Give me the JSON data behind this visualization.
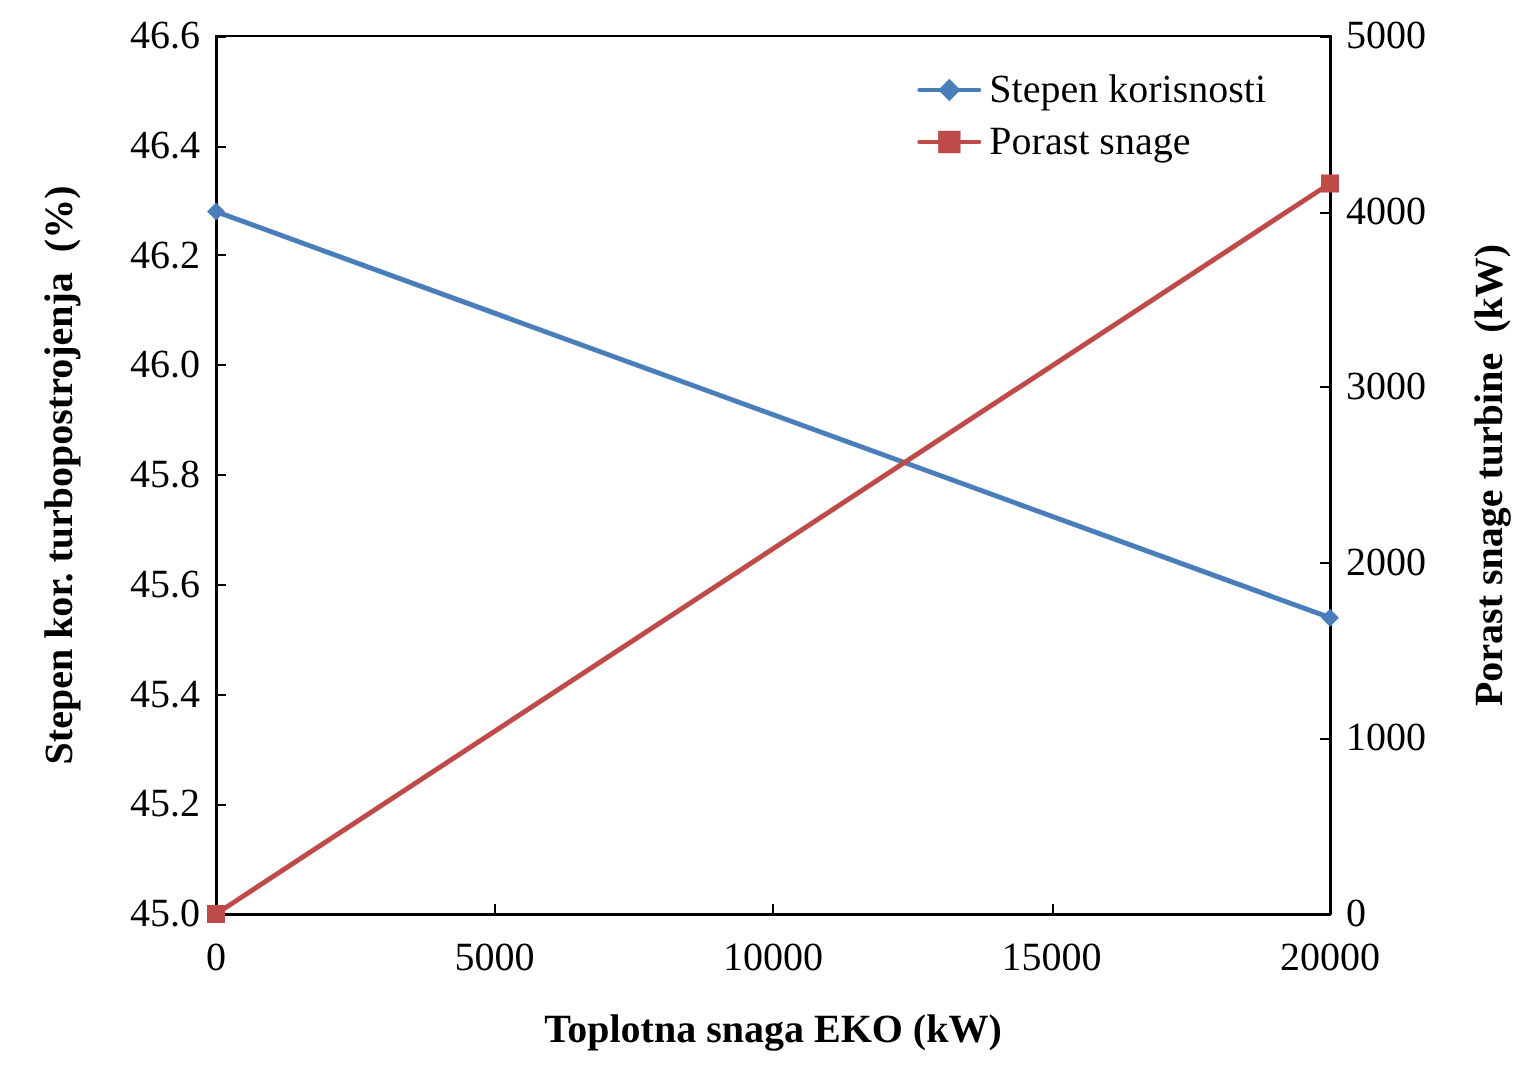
{
  "chart_data": {
    "type": "line",
    "xlabel": "Toplotna snaga EKO (kW)",
    "ylabel": "Stepen kor. turbopostrojenja  (%)",
    "y2label": "Porast snage turbine  (kW)",
    "x": [
      0,
      20000
    ],
    "xlim": [
      0,
      20000
    ],
    "xticks": [
      0,
      5000,
      10000,
      15000,
      20000
    ],
    "ylim": [
      45.0,
      46.6
    ],
    "yticks": [
      {
        "value": 45.0,
        "label": "45.0"
      },
      {
        "value": 45.2,
        "label": "45.2"
      },
      {
        "value": 45.4,
        "label": "45.4"
      },
      {
        "value": 45.6,
        "label": "45.6"
      },
      {
        "value": 45.8,
        "label": "45.8"
      },
      {
        "value": 46.0,
        "label": "46.0"
      },
      {
        "value": 46.2,
        "label": "46.2"
      },
      {
        "value": 46.4,
        "label": "46.4"
      },
      {
        "value": 46.6,
        "label": "46.6"
      }
    ],
    "y2lim": [
      0,
      5000
    ],
    "y2ticks": [
      0,
      1000,
      2000,
      3000,
      4000,
      5000
    ],
    "series": [
      {
        "name": "Stepen korisnosti",
        "color": "#4a7ebb",
        "values": [
          46.28,
          45.54
        ],
        "marker": "diamond"
      },
      {
        "name": "Porast snage",
        "color": "#be4b48",
        "values": [
          0,
          4160
        ],
        "marker": "square",
        "axis": "y2"
      }
    ],
    "legend": "top right",
    "grid": false,
    "line_style": "solid"
  }
}
